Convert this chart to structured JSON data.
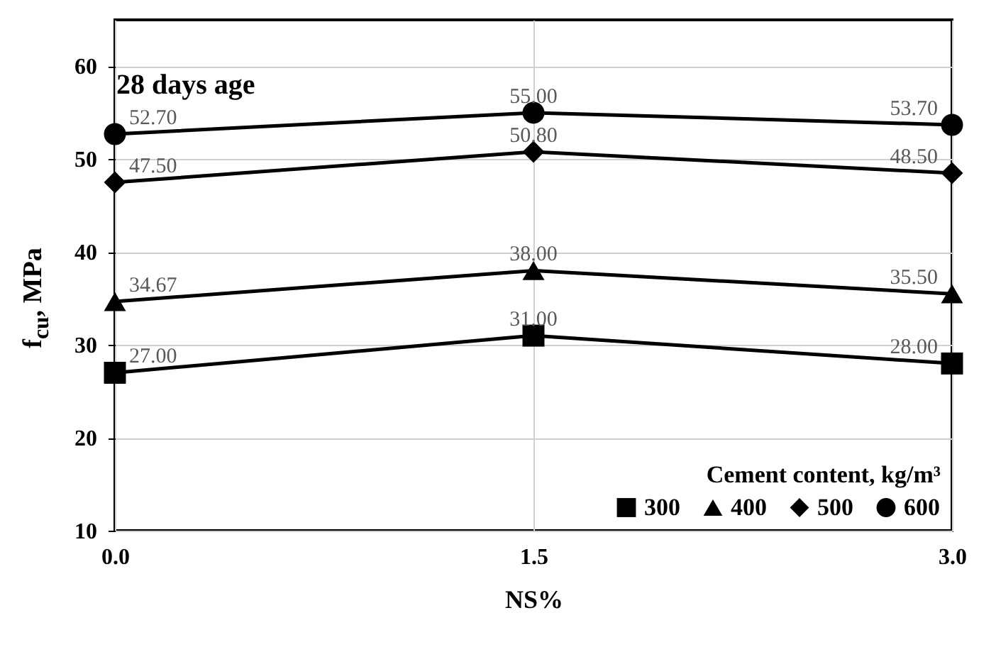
{
  "chart_data": {
    "type": "line",
    "title": "28 days age",
    "xlabel": "NS%",
    "ylabel": "f$_{cu}$, MPa",
    "legend_title": "Cement content, kg/m³",
    "x": [
      0,
      1.5,
      3
    ],
    "series": [
      {
        "name": "300",
        "color": "#000000",
        "marker": "square",
        "values": [
          27.0,
          31.0,
          28.0
        ],
        "value_labels": [
          "27.00",
          "31.00",
          "28.00"
        ]
      },
      {
        "name": "400",
        "color": "#000000",
        "marker": "triangle",
        "values": [
          34.67,
          38.0,
          35.5
        ],
        "value_labels": [
          "34.67",
          "38.00",
          "35.50"
        ]
      },
      {
        "name": "500",
        "color": "#000000",
        "marker": "diamond",
        "values": [
          47.5,
          50.8,
          48.5
        ],
        "value_labels": [
          "47.50",
          "50.80",
          "48.50"
        ]
      },
      {
        "name": "600",
        "color": "#000000",
        "marker": "circle",
        "values": [
          52.7,
          55.0,
          53.7
        ],
        "value_labels": [
          "52.70",
          "55.00",
          "53.70"
        ]
      }
    ],
    "xlim": [
      0,
      3
    ],
    "xticks": [
      {
        "value": 0,
        "label": "0.0"
      },
      {
        "value": 1.5,
        "label": "1.5"
      },
      {
        "value": 3,
        "label": "3.0"
      }
    ],
    "ylim": [
      10,
      65
    ],
    "yticks": [
      10,
      20,
      30,
      40,
      50,
      60
    ],
    "grid": true,
    "legend": "bottom right",
    "line_style": "solid"
  }
}
